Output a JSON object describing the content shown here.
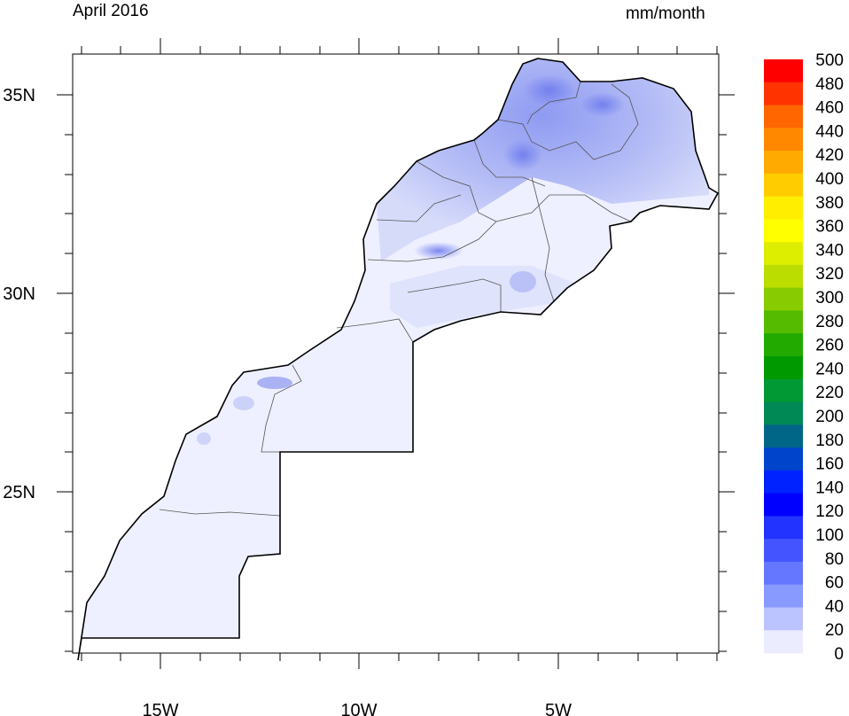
{
  "header": {
    "title": "April 2016",
    "units": "mm/month"
  },
  "axes": {
    "x_ticks": [
      "15W",
      "10W",
      "5W"
    ],
    "y_ticks": [
      "35N",
      "30N",
      "25N"
    ]
  },
  "colorbar": {
    "labels": [
      "500",
      "480",
      "460",
      "440",
      "420",
      "400",
      "380",
      "360",
      "340",
      "320",
      "300",
      "280",
      "260",
      "240",
      "220",
      "200",
      "180",
      "160",
      "140",
      "120",
      "100",
      "80",
      "60",
      "40",
      "20",
      "0"
    ],
    "colors": [
      "#ff0000",
      "#ff3300",
      "#ff6600",
      "#ff8800",
      "#ffaa00",
      "#ffcc00",
      "#ffee00",
      "#ffff00",
      "#ddee00",
      "#bbdd00",
      "#88cc00",
      "#55bb00",
      "#22aa00",
      "#009900",
      "#009933",
      "#008855",
      "#006688",
      "#0044cc",
      "#0022ff",
      "#0000ff",
      "#2233ff",
      "#4455ff",
      "#6677ff",
      "#8899ff",
      "#bbc4ff",
      "#ececff"
    ]
  },
  "map": {
    "region": "Morocco",
    "fill_light": "#eef0ff",
    "fill_mid": "#b8c0f5",
    "fill_dark": "#7f8cf0"
  }
}
